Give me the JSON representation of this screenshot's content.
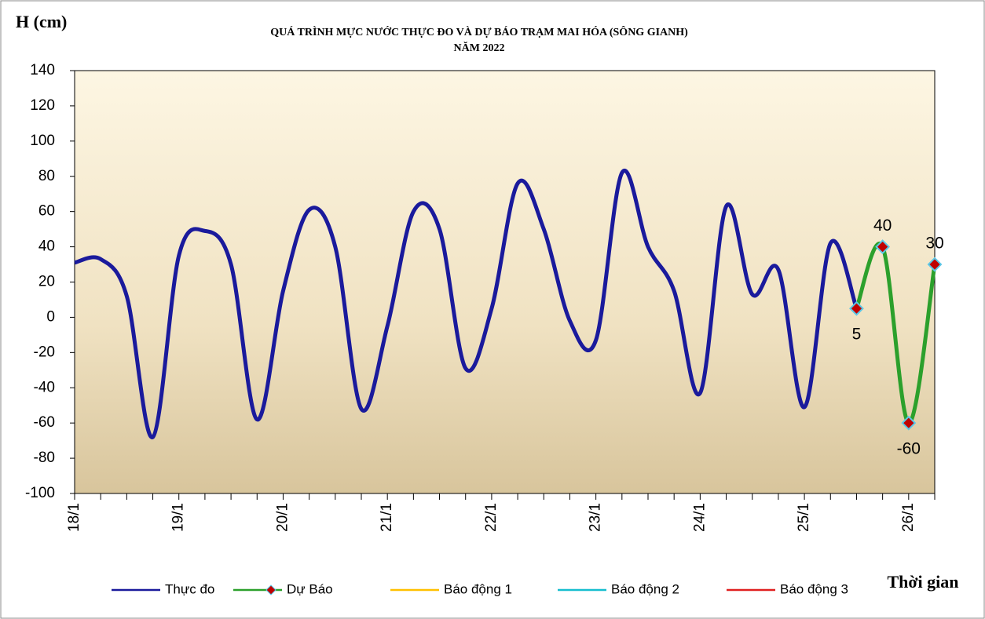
{
  "chart_data": {
    "type": "line",
    "title": "QUÁ TRÌNH MỰC NƯỚC THỰC ĐO VÀ DỰ BÁO TRẠM MAI HÓA (SÔNG GIANH)",
    "subtitle": "NĂM 2022",
    "y_label": "H (cm)",
    "x_label": "Thời gian",
    "categories": [
      "18/1",
      null,
      null,
      null,
      "19/1",
      null,
      null,
      null,
      "20/1",
      null,
      null,
      null,
      "21/1",
      null,
      null,
      null,
      "22/1",
      null,
      null,
      null,
      "23/1",
      null,
      null,
      null,
      "24/1",
      null,
      null,
      null,
      "25/1",
      null,
      null,
      null,
      "26/1",
      null
    ],
    "series": [
      {
        "name": "Thực đo",
        "color": "#1a1a9c",
        "values": [
          31,
          33,
          12,
          -68,
          35,
          49,
          30,
          -58,
          15,
          61,
          40,
          -52,
          -5,
          60,
          50,
          -29,
          5,
          76,
          50,
          -2,
          -13,
          82,
          40,
          15,
          -43,
          63,
          13,
          27,
          -51,
          42,
          5,
          null,
          null,
          null
        ]
      },
      {
        "name": "Dự Báo",
        "color": "#2ca02c",
        "marker_color": "#c00000",
        "values": [
          null,
          null,
          null,
          null,
          null,
          null,
          null,
          null,
          null,
          null,
          null,
          null,
          null,
          null,
          null,
          null,
          null,
          null,
          null,
          null,
          null,
          null,
          null,
          null,
          null,
          null,
          null,
          null,
          null,
          null,
          5,
          40,
          -60,
          30
        ]
      },
      {
        "name": "Báo động 1",
        "color": "#ffc000"
      },
      {
        "name": "Báo động 2",
        "color": "#17becf"
      },
      {
        "name": "Báo động 3",
        "color": "#e02020"
      }
    ],
    "ylim": [
      -100,
      140
    ],
    "yticks": [
      -100,
      -80,
      -60,
      -40,
      -20,
      0,
      20,
      40,
      60,
      80,
      100,
      120,
      140
    ],
    "smooth": true
  }
}
